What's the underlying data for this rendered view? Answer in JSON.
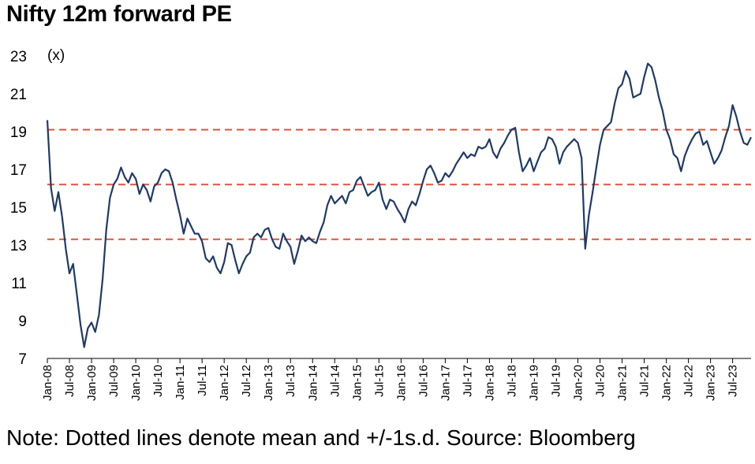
{
  "title": "Nifty 12m forward PE",
  "note": "Note: Dotted lines denote mean and +/-1s.d. Source: Bloomberg",
  "chart_data": {
    "type": "line",
    "title": "Nifty 12m forward PE",
    "ylabel": "(x)",
    "xlabel": "",
    "ylim": [
      7,
      23
    ],
    "yticks": [
      7,
      9,
      11,
      13,
      15,
      17,
      19,
      21,
      23
    ],
    "xlim": [
      "2008-01",
      "2023-12"
    ],
    "xticks": [
      "Jan-08",
      "Jul-08",
      "Jan-09",
      "Jul-09",
      "Jan-10",
      "Jul-10",
      "Jan-11",
      "Jul-11",
      "Jan-12",
      "Jul-12",
      "Jan-13",
      "Jul-13",
      "Jan-14",
      "Jul-14",
      "Jan-15",
      "Jul-15",
      "Jan-16",
      "Jul-16",
      "Jan-17",
      "Jul-17",
      "Jan-18",
      "Jul-18",
      "Jan-19",
      "Jul-19",
      "Jan-20",
      "Jul-20",
      "Jan-21",
      "Jul-21",
      "Jan-22",
      "Jul-22",
      "Jan-23",
      "Jul-23"
    ],
    "grid": false,
    "line_color": "#1f3a68",
    "reference_line_color": "#e0533f",
    "reference_lines": [
      {
        "name": "+1 s.d.",
        "value": 19.1
      },
      {
        "name": "mean",
        "value": 16.2
      },
      {
        "name": "-1 s.d.",
        "value": 13.3
      }
    ],
    "series": [
      {
        "x": [
          "2008-01",
          "2008-02",
          "2008-03",
          "2008-04",
          "2008-05",
          "2008-06",
          "2008-07",
          "2008-08",
          "2008-09",
          "2008-10",
          "2008-11",
          "2008-12",
          "2009-01",
          "2009-02",
          "2009-03",
          "2009-04",
          "2009-05",
          "2009-06",
          "2009-07",
          "2009-08",
          "2009-09",
          "2009-10",
          "2009-11",
          "2009-12",
          "2010-01",
          "2010-02",
          "2010-03",
          "2010-04",
          "2010-05",
          "2010-06",
          "2010-07",
          "2010-08",
          "2010-09",
          "2010-10",
          "2010-11",
          "2010-12",
          "2011-01",
          "2011-02",
          "2011-03",
          "2011-04",
          "2011-05",
          "2011-06",
          "2011-07",
          "2011-08",
          "2011-09",
          "2011-10",
          "2011-11",
          "2011-12",
          "2012-01",
          "2012-02",
          "2012-03",
          "2012-04",
          "2012-05",
          "2012-06",
          "2012-07",
          "2012-08",
          "2012-09",
          "2012-10",
          "2012-11",
          "2012-12",
          "2013-01",
          "2013-02",
          "2013-03",
          "2013-04",
          "2013-05",
          "2013-06",
          "2013-07",
          "2013-08",
          "2013-09",
          "2013-10",
          "2013-11",
          "2013-12",
          "2014-01",
          "2014-02",
          "2014-03",
          "2014-04",
          "2014-05",
          "2014-06",
          "2014-07",
          "2014-08",
          "2014-09",
          "2014-10",
          "2014-11",
          "2014-12",
          "2015-01",
          "2015-02",
          "2015-03",
          "2015-04",
          "2015-05",
          "2015-06",
          "2015-07",
          "2015-08",
          "2015-09",
          "2015-10",
          "2015-11",
          "2015-12",
          "2016-01",
          "2016-02",
          "2016-03",
          "2016-04",
          "2016-05",
          "2016-06",
          "2016-07",
          "2016-08",
          "2016-09",
          "2016-10",
          "2016-11",
          "2016-12",
          "2017-01",
          "2017-02",
          "2017-03",
          "2017-04",
          "2017-05",
          "2017-06",
          "2017-07",
          "2017-08",
          "2017-09",
          "2017-10",
          "2017-11",
          "2017-12",
          "2018-01",
          "2018-02",
          "2018-03",
          "2018-04",
          "2018-05",
          "2018-06",
          "2018-07",
          "2018-08",
          "2018-09",
          "2018-10",
          "2018-11",
          "2018-12",
          "2019-01",
          "2019-02",
          "2019-03",
          "2019-04",
          "2019-05",
          "2019-06",
          "2019-07",
          "2019-08",
          "2019-09",
          "2019-10",
          "2019-11",
          "2019-12",
          "2020-01",
          "2020-02",
          "2020-03",
          "2020-04",
          "2020-05",
          "2020-06",
          "2020-07",
          "2020-08",
          "2020-09",
          "2020-10",
          "2020-11",
          "2020-12",
          "2021-01",
          "2021-02",
          "2021-03",
          "2021-04",
          "2021-05",
          "2021-06",
          "2021-07",
          "2021-08",
          "2021-09",
          "2021-10",
          "2021-11",
          "2021-12",
          "2022-01",
          "2022-02",
          "2022-03",
          "2022-04",
          "2022-05",
          "2022-06",
          "2022-07",
          "2022-08",
          "2022-09",
          "2022-10",
          "2022-11",
          "2022-12",
          "2023-01",
          "2023-02",
          "2023-03",
          "2023-04",
          "2023-05",
          "2023-06",
          "2023-07",
          "2023-08",
          "2023-09",
          "2023-10",
          "2023-11",
          "2023-12"
        ],
        "values": [
          19.6,
          16.0,
          14.8,
          15.8,
          14.5,
          12.8,
          11.5,
          12.0,
          10.4,
          8.8,
          7.6,
          8.6,
          8.9,
          8.4,
          9.3,
          11.2,
          13.8,
          15.5,
          16.2,
          16.5,
          17.1,
          16.6,
          16.3,
          16.8,
          16.5,
          15.7,
          16.2,
          15.9,
          15.3,
          16.1,
          16.3,
          16.8,
          17.0,
          16.9,
          16.3,
          15.4,
          14.6,
          13.6,
          14.4,
          14.0,
          13.6,
          13.6,
          13.2,
          12.3,
          12.1,
          12.4,
          11.8,
          11.5,
          12.1,
          13.1,
          13.0,
          12.2,
          11.5,
          12.0,
          12.4,
          12.6,
          13.4,
          13.6,
          13.4,
          13.8,
          13.9,
          13.3,
          12.9,
          12.8,
          13.6,
          13.2,
          12.9,
          12.0,
          12.7,
          13.5,
          13.2,
          13.4,
          13.2,
          13.1,
          13.7,
          14.2,
          15.1,
          15.6,
          15.2,
          15.4,
          15.6,
          15.2,
          15.8,
          15.9,
          16.4,
          16.6,
          16.1,
          15.6,
          15.8,
          15.9,
          16.3,
          15.4,
          14.9,
          15.4,
          15.3,
          14.9,
          14.6,
          14.2,
          14.9,
          15.3,
          15.1,
          15.7,
          16.4,
          17.0,
          17.2,
          16.8,
          16.3,
          16.4,
          16.8,
          16.6,
          16.9,
          17.3,
          17.6,
          17.9,
          17.6,
          17.8,
          17.7,
          18.2,
          18.1,
          18.2,
          18.6,
          17.9,
          17.6,
          18.1,
          18.4,
          18.8,
          19.1,
          19.2,
          17.9,
          16.9,
          17.2,
          17.6,
          16.9,
          17.4,
          17.9,
          18.1,
          18.7,
          18.6,
          18.2,
          17.3,
          17.9,
          18.2,
          18.4,
          18.6,
          18.4,
          17.6,
          12.8,
          14.6,
          15.8,
          17.1,
          18.3,
          19.1,
          19.3,
          19.5,
          20.5,
          21.3,
          21.5,
          22.2,
          21.8,
          20.8,
          20.9,
          21.0,
          21.9,
          22.6,
          22.4,
          21.7,
          20.8,
          20.1,
          19.1,
          18.6,
          17.8,
          17.6,
          16.9,
          17.7,
          18.2,
          18.6,
          18.9,
          19.0,
          18.3,
          18.5,
          17.9,
          17.3,
          17.6,
          18.0,
          18.7,
          19.3,
          20.4,
          19.8,
          19.0,
          18.4,
          18.3,
          18.7
        ]
      }
    ]
  }
}
